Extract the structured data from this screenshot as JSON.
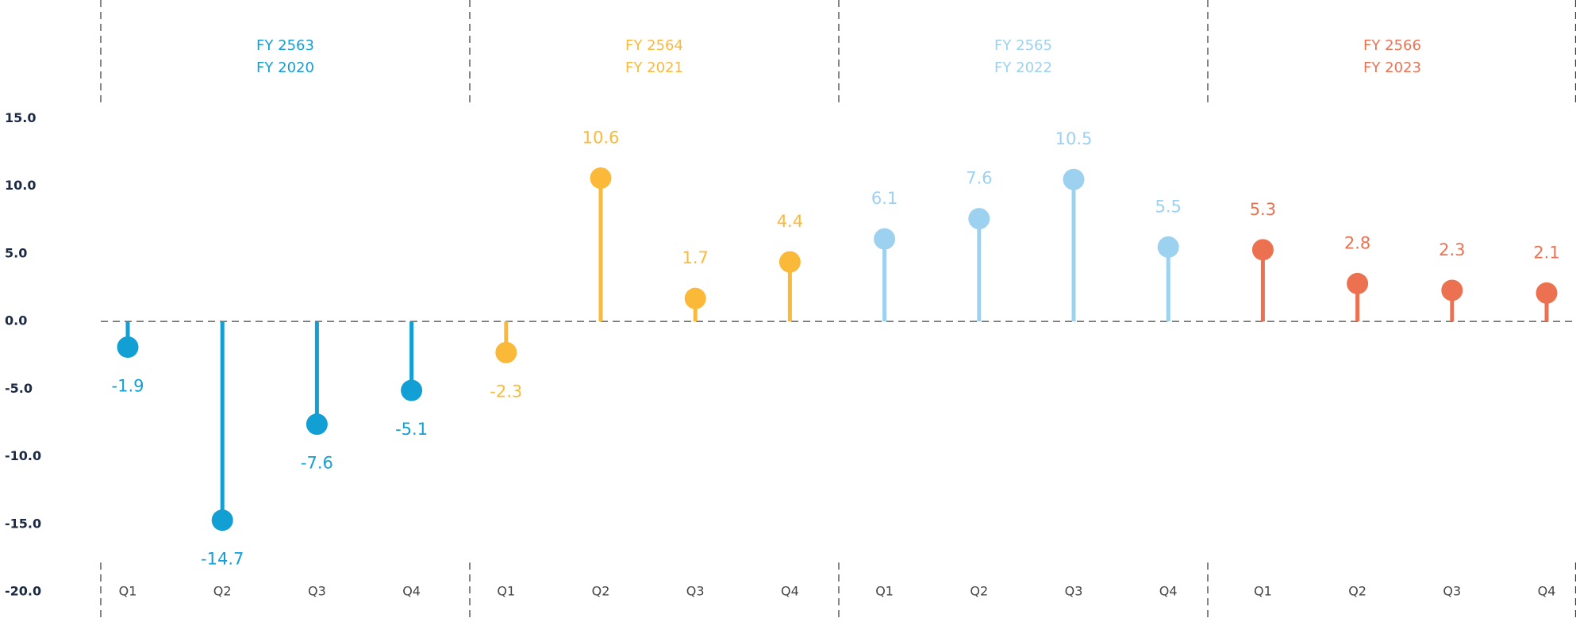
{
  "chart_data": {
    "type": "lollipop",
    "ylim": [
      -20,
      15
    ],
    "yticks": [
      {
        "value": 15,
        "label": "15.0"
      },
      {
        "value": 10,
        "label": "10.0"
      },
      {
        "value": 5,
        "label": "5.0"
      },
      {
        "value": 0,
        "label": "0.0"
      },
      {
        "value": -5,
        "label": "-5.0"
      },
      {
        "value": -10,
        "label": "-10.0"
      },
      {
        "value": -15,
        "label": "-15.0"
      },
      {
        "value": -20,
        "label": "-20.0"
      }
    ],
    "series": [
      {
        "labels": [
          "FY 2563",
          "FY 2020"
        ],
        "color": "#129fd4",
        "categories": [
          "Q1",
          "Q2",
          "Q3",
          "Q4"
        ],
        "values": [
          -1.9,
          -14.7,
          -7.6,
          -5.1
        ]
      },
      {
        "labels": [
          "FY 2564",
          "FY 2021"
        ],
        "color": "#fbb93a",
        "categories": [
          "Q1",
          "Q2",
          "Q3",
          "Q4"
        ],
        "values": [
          -2.3,
          10.6,
          1.7,
          4.4
        ]
      },
      {
        "labels": [
          "FY 2565",
          "FY 2022"
        ],
        "color": "#9dd1f0",
        "categories": [
          "Q1",
          "Q2",
          "Q3",
          "Q4"
        ],
        "values": [
          6.1,
          7.6,
          10.5,
          5.5
        ]
      },
      {
        "labels": [
          "FY 2566",
          "FY 2023"
        ],
        "color": "#ec7150",
        "categories": [
          "Q1",
          "Q2",
          "Q3",
          "Q4"
        ],
        "values": [
          5.3,
          2.8,
          2.3,
          2.1
        ]
      }
    ]
  }
}
